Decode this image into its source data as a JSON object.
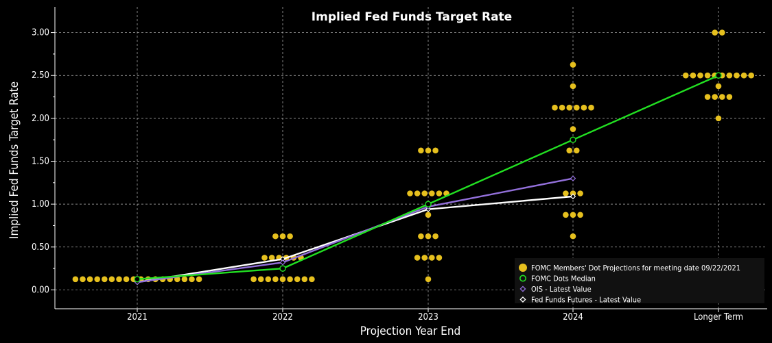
{
  "chart_data": {
    "type": "scatter",
    "title": "Implied Fed Funds Target Rate",
    "xlabel": "Projection Year End",
    "ylabel": "Implied Fed Funds Target Rate",
    "categories": [
      "2021",
      "2022",
      "2023",
      "2024",
      "Longer Term"
    ],
    "y_ticks": [
      "0.00",
      "0.50",
      "1.00",
      "1.50",
      "2.00",
      "2.50",
      "3.00"
    ],
    "ylim": [
      -0.22,
      3.3
    ],
    "grid": true,
    "legend_position": "bottom-right",
    "dots": [
      {
        "category": "2021",
        "counts": [
          {
            "value": 0.125,
            "count": 18
          }
        ]
      },
      {
        "category": "2022",
        "counts": [
          {
            "value": 0.125,
            "count": 9
          },
          {
            "value": 0.375,
            "count": 6
          },
          {
            "value": 0.625,
            "count": 3
          }
        ]
      },
      {
        "category": "2023",
        "counts": [
          {
            "value": 0.125,
            "count": 1
          },
          {
            "value": 0.375,
            "count": 4
          },
          {
            "value": 0.625,
            "count": 3
          },
          {
            "value": 0.875,
            "count": 1
          },
          {
            "value": 1.125,
            "count": 6
          },
          {
            "value": 1.625,
            "count": 3
          }
        ]
      },
      {
        "category": "2024",
        "counts": [
          {
            "value": 0.625,
            "count": 1
          },
          {
            "value": 0.875,
            "count": 3
          },
          {
            "value": 1.125,
            "count": 3
          },
          {
            "value": 1.625,
            "count": 2
          },
          {
            "value": 1.875,
            "count": 1
          },
          {
            "value": 2.125,
            "count": 6
          },
          {
            "value": 2.375,
            "count": 1
          },
          {
            "value": 2.625,
            "count": 1
          }
        ]
      },
      {
        "category": "Longer Term",
        "counts": [
          {
            "value": 2.0,
            "count": 1
          },
          {
            "value": 2.25,
            "count": 4
          },
          {
            "value": 2.375,
            "count": 1
          },
          {
            "value": 2.5,
            "count": 10
          },
          {
            "value": 3.0,
            "count": 2
          }
        ]
      }
    ],
    "series": [
      {
        "name": "FOMC Dots Median",
        "color": "#22e022",
        "marker": "circle",
        "values": [
          0.125,
          0.25,
          1.0,
          1.75,
          2.5
        ]
      },
      {
        "name": "OIS - Latest Value",
        "color": "#9370db",
        "marker": "diamond",
        "values": [
          0.09,
          0.32,
          0.97,
          1.3,
          null
        ]
      },
      {
        "name": "Fed Funds Futures - Latest Value",
        "color": "#ffffff",
        "marker": "diamond",
        "values": [
          0.09,
          0.36,
          0.94,
          1.09,
          null
        ]
      }
    ],
    "legend": [
      {
        "label": "FOMC Members' Dot Projections for meeting date 09/22/2021",
        "color": "#e6c01e",
        "marker": "dot"
      },
      {
        "label": "FOMC Dots Median",
        "color": "#22e022",
        "marker": "circle"
      },
      {
        "label": "OIS - Latest Value",
        "color": "#9370db",
        "marker": "diamond"
      },
      {
        "label": "Fed Funds Futures - Latest Value",
        "color": "#ffffff",
        "marker": "diamond"
      }
    ],
    "colors": {
      "background": "#000000",
      "dots": "#e6c01e",
      "grid": "#bbbbbb",
      "legend_bg": "#111111"
    }
  }
}
